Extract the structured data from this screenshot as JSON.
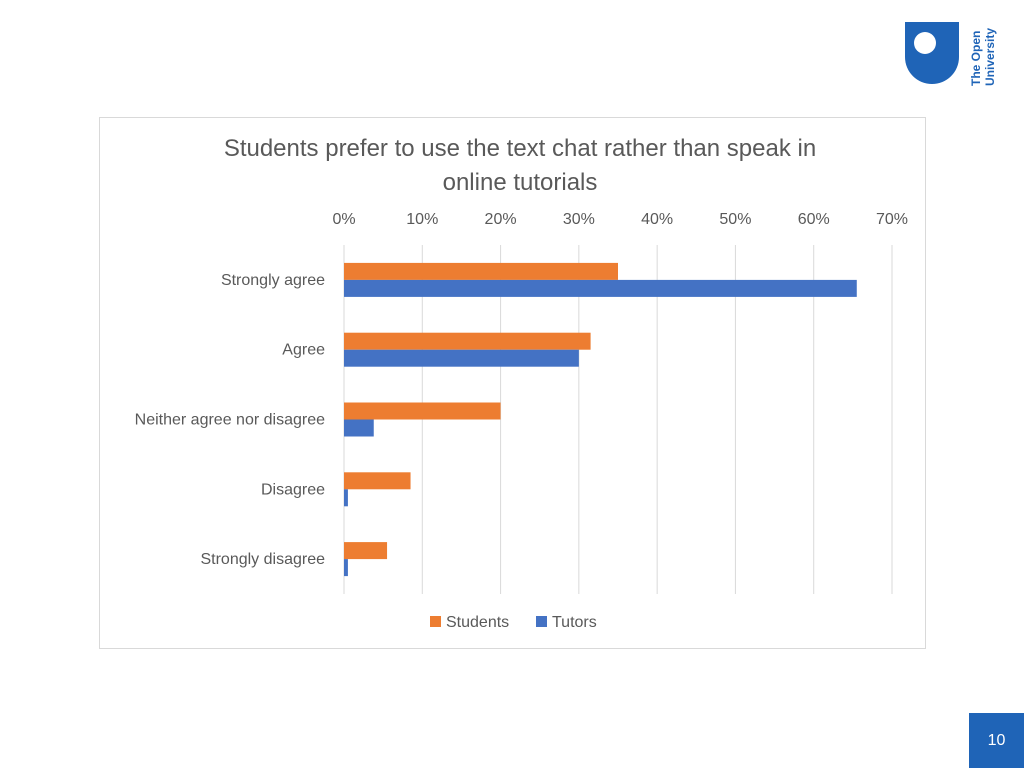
{
  "logo": {
    "line1": "The Open",
    "line2": "University"
  },
  "page_number": "10",
  "colors": {
    "students": "#ed7d31",
    "tutors": "#4472c4",
    "grid": "#d9d9d9",
    "text": "#595959",
    "brand": "#1f64b7"
  },
  "chart_data": {
    "type": "bar",
    "orientation": "horizontal",
    "title": "Students prefer to use the text chat rather than speak in online tutorials",
    "title_lines": [
      "Students prefer to use the text chat rather than speak in",
      "online tutorials"
    ],
    "categories": [
      "Strongly agree",
      "Agree",
      "Neither agree nor disagree",
      "Disagree",
      "Strongly disagree"
    ],
    "series": [
      {
        "name": "Students",
        "color": "#ed7d31",
        "values": [
          35,
          31.5,
          20,
          8.5,
          5.5
        ]
      },
      {
        "name": "Tutors",
        "color": "#4472c4",
        "values": [
          65.5,
          30,
          3.8,
          0.5,
          0.5
        ]
      }
    ],
    "xlim": [
      0,
      70
    ],
    "xticks": [
      0,
      10,
      20,
      30,
      40,
      50,
      60,
      70
    ],
    "xtick_labels": [
      "0%",
      "10%",
      "20%",
      "30%",
      "40%",
      "50%",
      "60%",
      "70%"
    ],
    "x_axis_position": "top",
    "grid": true,
    "legend_position": "bottom"
  }
}
